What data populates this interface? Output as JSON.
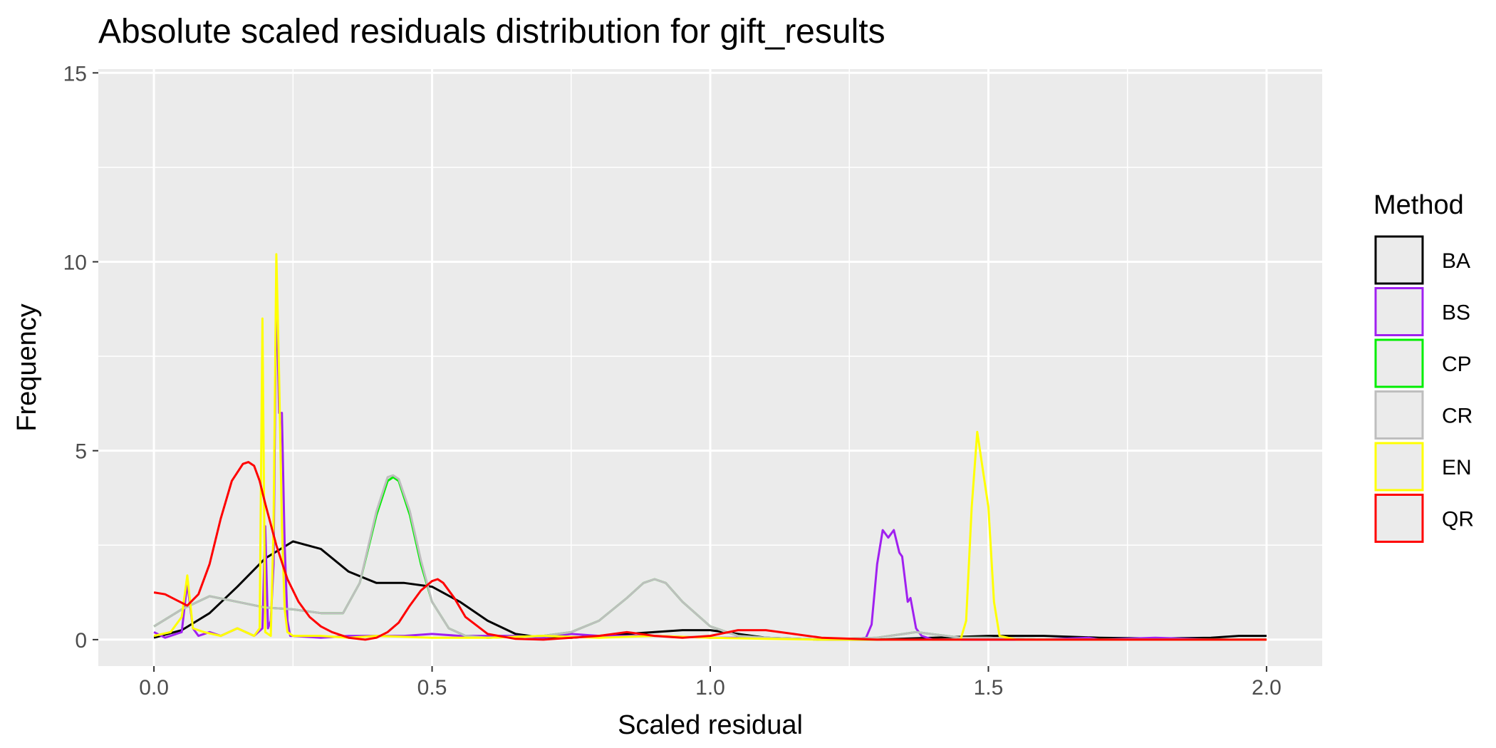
{
  "chart_data": {
    "type": "line",
    "title": "Absolute scaled residuals distribution for gift_results",
    "xlabel": "Scaled residual",
    "ylabel": "Frequency",
    "xlim": [
      -0.1,
      2.1
    ],
    "ylim": [
      -0.7,
      15.1
    ],
    "x_ticks": [
      0.0,
      0.5,
      1.0,
      1.5,
      2.0
    ],
    "x_tick_labels": [
      "0.0",
      "0.5",
      "1.0",
      "1.5",
      "2.0"
    ],
    "y_ticks": [
      0,
      5,
      10,
      15
    ],
    "y_tick_labels": [
      "0",
      "5",
      "10",
      "15"
    ],
    "grid": true,
    "panel_background": "#ebebeb",
    "legend": {
      "title": "Method",
      "position": "right"
    },
    "series": [
      {
        "name": "BA",
        "color": "#000000",
        "x": [
          0.0,
          0.05,
          0.1,
          0.15,
          0.2,
          0.25,
          0.3,
          0.35,
          0.4,
          0.45,
          0.5,
          0.55,
          0.6,
          0.65,
          0.7,
          0.75,
          0.8,
          0.85,
          0.9,
          0.95,
          1.0,
          1.05,
          1.1,
          1.2,
          1.3,
          1.4,
          1.5,
          1.6,
          1.7,
          1.8,
          1.9,
          1.95,
          2.0
        ],
        "y": [
          0.05,
          0.25,
          0.7,
          1.4,
          2.15,
          2.6,
          2.4,
          1.8,
          1.5,
          1.5,
          1.4,
          1.0,
          0.5,
          0.15,
          0.05,
          0.05,
          0.1,
          0.15,
          0.2,
          0.25,
          0.25,
          0.15,
          0.05,
          0.0,
          0.0,
          0.05,
          0.1,
          0.1,
          0.05,
          0.03,
          0.05,
          0.1,
          0.1
        ]
      },
      {
        "name": "BS",
        "color": "#a020f0",
        "x": [
          0.0,
          0.02,
          0.05,
          0.06,
          0.07,
          0.08,
          0.1,
          0.12,
          0.15,
          0.18,
          0.195,
          0.2,
          0.205,
          0.21,
          0.215,
          0.22,
          0.225,
          0.23,
          0.235,
          0.24,
          0.245,
          0.25,
          0.3,
          0.35,
          0.4,
          0.45,
          0.5,
          0.55,
          0.6,
          0.65,
          0.7,
          0.75,
          0.8,
          0.9,
          1.0,
          1.1,
          1.2,
          1.25,
          1.28,
          1.29,
          1.3,
          1.31,
          1.32,
          1.33,
          1.34,
          1.345,
          1.35,
          1.355,
          1.36,
          1.37,
          1.38,
          1.4,
          1.5,
          1.6,
          1.68,
          1.7,
          1.8,
          1.9,
          2.0
        ],
        "y": [
          0.2,
          0.05,
          0.2,
          1.5,
          0.3,
          0.1,
          0.2,
          0.1,
          0.3,
          0.1,
          0.3,
          3.0,
          0.3,
          0.5,
          2.0,
          9.5,
          6.0,
          6.0,
          2.5,
          0.5,
          0.1,
          0.1,
          0.05,
          0.1,
          0.1,
          0.1,
          0.15,
          0.1,
          0.1,
          0.1,
          0.05,
          0.15,
          0.1,
          0.1,
          0.05,
          0.05,
          0.0,
          0.0,
          0.05,
          0.4,
          2.0,
          2.9,
          2.7,
          2.9,
          2.3,
          2.2,
          1.6,
          1.0,
          1.1,
          0.3,
          0.1,
          0.0,
          0.0,
          0.0,
          0.05,
          0.0,
          0.05,
          0.0,
          0.0
        ]
      },
      {
        "name": "CP",
        "color": "#00ee00",
        "x": [
          0.0,
          0.05,
          0.1,
          0.15,
          0.2,
          0.25,
          0.3,
          0.34,
          0.37,
          0.4,
          0.42,
          0.43,
          0.44,
          0.46,
          0.48,
          0.5,
          0.53,
          0.56,
          0.6,
          0.7,
          0.75,
          0.8,
          0.85,
          0.88,
          0.9,
          0.92,
          0.95,
          1.0,
          1.05,
          1.1,
          1.2,
          1.3,
          1.37,
          1.45,
          1.5,
          1.6,
          1.7,
          1.8,
          1.9,
          2.0
        ],
        "y": [
          0.35,
          0.8,
          1.15,
          1.0,
          0.85,
          0.8,
          0.7,
          0.7,
          1.5,
          3.3,
          4.2,
          4.3,
          4.2,
          3.3,
          2.0,
          1.0,
          0.3,
          0.1,
          0.05,
          0.1,
          0.2,
          0.5,
          1.1,
          1.5,
          1.6,
          1.5,
          1.0,
          0.35,
          0.1,
          0.05,
          0.0,
          0.05,
          0.2,
          0.05,
          0.05,
          0.0,
          0.0,
          0.0,
          0.0,
          0.0
        ]
      },
      {
        "name": "CR",
        "color": "#bebebe",
        "x": [
          0.0,
          0.05,
          0.1,
          0.15,
          0.2,
          0.25,
          0.3,
          0.34,
          0.37,
          0.4,
          0.42,
          0.43,
          0.44,
          0.46,
          0.48,
          0.5,
          0.53,
          0.56,
          0.6,
          0.7,
          0.75,
          0.8,
          0.85,
          0.88,
          0.9,
          0.92,
          0.95,
          1.0,
          1.05,
          1.1,
          1.2,
          1.3,
          1.37,
          1.45,
          1.5,
          1.6,
          1.7,
          1.8,
          1.9,
          2.0
        ],
        "y": [
          0.35,
          0.8,
          1.15,
          1.0,
          0.85,
          0.8,
          0.7,
          0.7,
          1.5,
          3.4,
          4.3,
          4.35,
          4.25,
          3.4,
          2.1,
          1.0,
          0.3,
          0.1,
          0.05,
          0.1,
          0.2,
          0.5,
          1.1,
          1.5,
          1.6,
          1.5,
          1.0,
          0.35,
          0.1,
          0.05,
          0.0,
          0.05,
          0.2,
          0.05,
          0.05,
          0.0,
          0.0,
          0.0,
          0.0,
          0.0
        ]
      },
      {
        "name": "EN",
        "color": "#ffff00",
        "x": [
          0.0,
          0.03,
          0.05,
          0.06,
          0.07,
          0.09,
          0.12,
          0.15,
          0.18,
          0.19,
          0.195,
          0.2,
          0.21,
          0.215,
          0.22,
          0.225,
          0.23,
          0.235,
          0.24,
          0.25,
          0.3,
          0.35,
          0.4,
          0.5,
          0.6,
          0.7,
          0.8,
          0.9,
          1.0,
          1.1,
          1.2,
          1.3,
          1.4,
          1.45,
          1.46,
          1.47,
          1.48,
          1.49,
          1.5,
          1.51,
          1.52,
          1.55,
          1.6,
          1.7,
          1.8,
          1.9,
          2.0
        ],
        "y": [
          0.1,
          0.2,
          0.6,
          1.7,
          0.3,
          0.2,
          0.1,
          0.3,
          0.1,
          0.3,
          8.5,
          0.2,
          0.1,
          3.0,
          10.2,
          7.0,
          3.0,
          0.8,
          0.2,
          0.1,
          0.1,
          0.05,
          0.1,
          0.05,
          0.05,
          0.1,
          0.05,
          0.1,
          0.05,
          0.02,
          0.0,
          0.0,
          0.0,
          0.0,
          0.5,
          3.5,
          5.5,
          4.5,
          3.5,
          1.0,
          0.1,
          0.0,
          0.0,
          0.0,
          0.0,
          0.0,
          0.0
        ]
      },
      {
        "name": "QR",
        "color": "#ff0000",
        "x": [
          0.0,
          0.02,
          0.04,
          0.06,
          0.08,
          0.1,
          0.12,
          0.14,
          0.16,
          0.17,
          0.18,
          0.19,
          0.2,
          0.22,
          0.24,
          0.26,
          0.28,
          0.3,
          0.32,
          0.35,
          0.38,
          0.4,
          0.42,
          0.44,
          0.46,
          0.48,
          0.5,
          0.51,
          0.52,
          0.54,
          0.56,
          0.6,
          0.65,
          0.7,
          0.75,
          0.8,
          0.85,
          0.9,
          0.95,
          1.0,
          1.05,
          1.1,
          1.15,
          1.2,
          1.3,
          1.4,
          1.5,
          1.6,
          1.8,
          2.0
        ],
        "y": [
          1.25,
          1.2,
          1.05,
          0.9,
          1.2,
          2.0,
          3.2,
          4.2,
          4.65,
          4.7,
          4.6,
          4.2,
          3.6,
          2.5,
          1.6,
          1.0,
          0.6,
          0.35,
          0.2,
          0.05,
          0.0,
          0.05,
          0.2,
          0.45,
          0.9,
          1.3,
          1.55,
          1.6,
          1.5,
          1.1,
          0.6,
          0.15,
          0.02,
          0.0,
          0.05,
          0.1,
          0.2,
          0.1,
          0.05,
          0.1,
          0.25,
          0.25,
          0.15,
          0.05,
          0.0,
          0.0,
          0.0,
          0.0,
          0.0,
          0.0
        ]
      }
    ]
  }
}
